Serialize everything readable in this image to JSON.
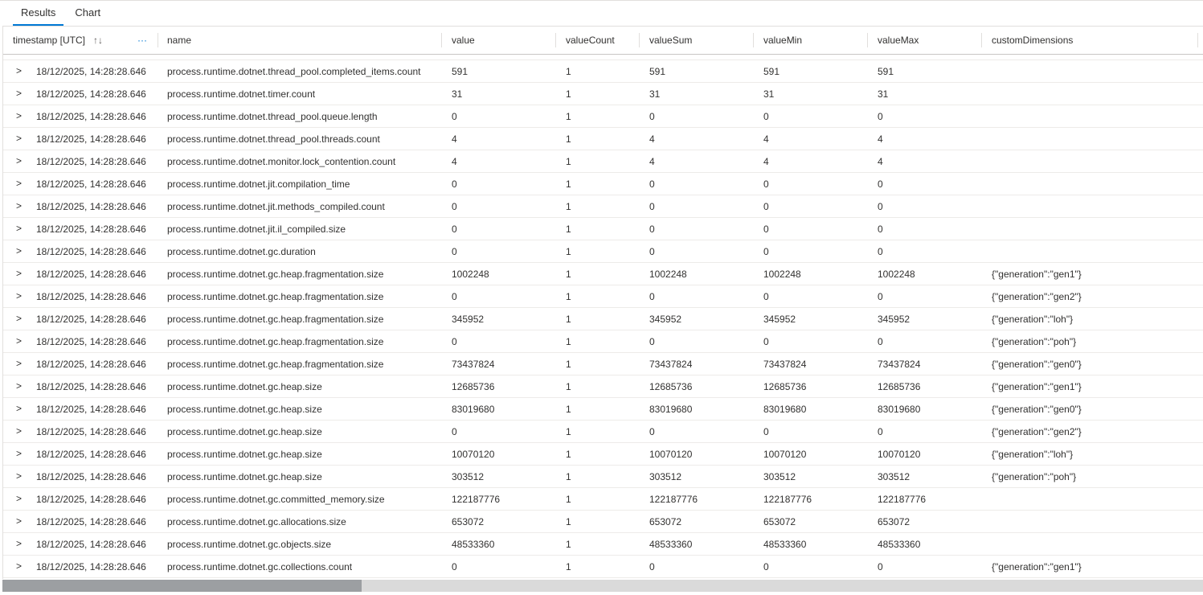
{
  "tabs": [
    {
      "label": "Results",
      "active": true
    },
    {
      "label": "Chart",
      "active": false
    }
  ],
  "columns": [
    "timestamp [UTC]",
    "name",
    "value",
    "valueCount",
    "valueSum",
    "valueMin",
    "valueMax",
    "customDimensions"
  ],
  "sort_icon": "↑↓",
  "more_icon": "···",
  "expand_icon": ">",
  "rows": [
    {
      "timestamp": "18/12/2025, 14:28:28.646",
      "name": "process.runtime.dotnet.thread_pool.completed_items.count",
      "value": "591",
      "valueCount": "1",
      "valueSum": "591",
      "valueMin": "591",
      "valueMax": "591",
      "customDimensions": ""
    },
    {
      "timestamp": "18/12/2025, 14:28:28.646",
      "name": "process.runtime.dotnet.timer.count",
      "value": "31",
      "valueCount": "1",
      "valueSum": "31",
      "valueMin": "31",
      "valueMax": "31",
      "customDimensions": ""
    },
    {
      "timestamp": "18/12/2025, 14:28:28.646",
      "name": "process.runtime.dotnet.thread_pool.queue.length",
      "value": "0",
      "valueCount": "1",
      "valueSum": "0",
      "valueMin": "0",
      "valueMax": "0",
      "customDimensions": ""
    },
    {
      "timestamp": "18/12/2025, 14:28:28.646",
      "name": "process.runtime.dotnet.thread_pool.threads.count",
      "value": "4",
      "valueCount": "1",
      "valueSum": "4",
      "valueMin": "4",
      "valueMax": "4",
      "customDimensions": ""
    },
    {
      "timestamp": "18/12/2025, 14:28:28.646",
      "name": "process.runtime.dotnet.monitor.lock_contention.count",
      "value": "4",
      "valueCount": "1",
      "valueSum": "4",
      "valueMin": "4",
      "valueMax": "4",
      "customDimensions": ""
    },
    {
      "timestamp": "18/12/2025, 14:28:28.646",
      "name": "process.runtime.dotnet.jit.compilation_time",
      "value": "0",
      "valueCount": "1",
      "valueSum": "0",
      "valueMin": "0",
      "valueMax": "0",
      "customDimensions": ""
    },
    {
      "timestamp": "18/12/2025, 14:28:28.646",
      "name": "process.runtime.dotnet.jit.methods_compiled.count",
      "value": "0",
      "valueCount": "1",
      "valueSum": "0",
      "valueMin": "0",
      "valueMax": "0",
      "customDimensions": ""
    },
    {
      "timestamp": "18/12/2025, 14:28:28.646",
      "name": "process.runtime.dotnet.jit.il_compiled.size",
      "value": "0",
      "valueCount": "1",
      "valueSum": "0",
      "valueMin": "0",
      "valueMax": "0",
      "customDimensions": ""
    },
    {
      "timestamp": "18/12/2025, 14:28:28.646",
      "name": "process.runtime.dotnet.gc.duration",
      "value": "0",
      "valueCount": "1",
      "valueSum": "0",
      "valueMin": "0",
      "valueMax": "0",
      "customDimensions": ""
    },
    {
      "timestamp": "18/12/2025, 14:28:28.646",
      "name": "process.runtime.dotnet.gc.heap.fragmentation.size",
      "value": "1002248",
      "valueCount": "1",
      "valueSum": "1002248",
      "valueMin": "1002248",
      "valueMax": "1002248",
      "customDimensions": "{\"generation\":\"gen1\"}"
    },
    {
      "timestamp": "18/12/2025, 14:28:28.646",
      "name": "process.runtime.dotnet.gc.heap.fragmentation.size",
      "value": "0",
      "valueCount": "1",
      "valueSum": "0",
      "valueMin": "0",
      "valueMax": "0",
      "customDimensions": "{\"generation\":\"gen2\"}"
    },
    {
      "timestamp": "18/12/2025, 14:28:28.646",
      "name": "process.runtime.dotnet.gc.heap.fragmentation.size",
      "value": "345952",
      "valueCount": "1",
      "valueSum": "345952",
      "valueMin": "345952",
      "valueMax": "345952",
      "customDimensions": "{\"generation\":\"loh\"}"
    },
    {
      "timestamp": "18/12/2025, 14:28:28.646",
      "name": "process.runtime.dotnet.gc.heap.fragmentation.size",
      "value": "0",
      "valueCount": "1",
      "valueSum": "0",
      "valueMin": "0",
      "valueMax": "0",
      "customDimensions": "{\"generation\":\"poh\"}"
    },
    {
      "timestamp": "18/12/2025, 14:28:28.646",
      "name": "process.runtime.dotnet.gc.heap.fragmentation.size",
      "value": "73437824",
      "valueCount": "1",
      "valueSum": "73437824",
      "valueMin": "73437824",
      "valueMax": "73437824",
      "customDimensions": "{\"generation\":\"gen0\"}"
    },
    {
      "timestamp": "18/12/2025, 14:28:28.646",
      "name": "process.runtime.dotnet.gc.heap.size",
      "value": "12685736",
      "valueCount": "1",
      "valueSum": "12685736",
      "valueMin": "12685736",
      "valueMax": "12685736",
      "customDimensions": "{\"generation\":\"gen1\"}"
    },
    {
      "timestamp": "18/12/2025, 14:28:28.646",
      "name": "process.runtime.dotnet.gc.heap.size",
      "value": "83019680",
      "valueCount": "1",
      "valueSum": "83019680",
      "valueMin": "83019680",
      "valueMax": "83019680",
      "customDimensions": "{\"generation\":\"gen0\"}"
    },
    {
      "timestamp": "18/12/2025, 14:28:28.646",
      "name": "process.runtime.dotnet.gc.heap.size",
      "value": "0",
      "valueCount": "1",
      "valueSum": "0",
      "valueMin": "0",
      "valueMax": "0",
      "customDimensions": "{\"generation\":\"gen2\"}"
    },
    {
      "timestamp": "18/12/2025, 14:28:28.646",
      "name": "process.runtime.dotnet.gc.heap.size",
      "value": "10070120",
      "valueCount": "1",
      "valueSum": "10070120",
      "valueMin": "10070120",
      "valueMax": "10070120",
      "customDimensions": "{\"generation\":\"loh\"}"
    },
    {
      "timestamp": "18/12/2025, 14:28:28.646",
      "name": "process.runtime.dotnet.gc.heap.size",
      "value": "303512",
      "valueCount": "1",
      "valueSum": "303512",
      "valueMin": "303512",
      "valueMax": "303512",
      "customDimensions": "{\"generation\":\"poh\"}"
    },
    {
      "timestamp": "18/12/2025, 14:28:28.646",
      "name": "process.runtime.dotnet.gc.committed_memory.size",
      "value": "122187776",
      "valueCount": "1",
      "valueSum": "122187776",
      "valueMin": "122187776",
      "valueMax": "122187776",
      "customDimensions": ""
    },
    {
      "timestamp": "18/12/2025, 14:28:28.646",
      "name": "process.runtime.dotnet.gc.allocations.size",
      "value": "653072",
      "valueCount": "1",
      "valueSum": "653072",
      "valueMin": "653072",
      "valueMax": "653072",
      "customDimensions": ""
    },
    {
      "timestamp": "18/12/2025, 14:28:28.646",
      "name": "process.runtime.dotnet.gc.objects.size",
      "value": "48533360",
      "valueCount": "1",
      "valueSum": "48533360",
      "valueMin": "48533360",
      "valueMax": "48533360",
      "customDimensions": ""
    },
    {
      "timestamp": "18/12/2025, 14:28:28.646",
      "name": "process.runtime.dotnet.gc.collections.count",
      "value": "0",
      "valueCount": "1",
      "valueSum": "0",
      "valueMin": "0",
      "valueMax": "0",
      "customDimensions": "{\"generation\":\"gen1\"}"
    }
  ],
  "colors": {
    "accent": "#0078d4",
    "scroll_thumb": "#9c9fa2",
    "scroll_track": "#dadada"
  }
}
